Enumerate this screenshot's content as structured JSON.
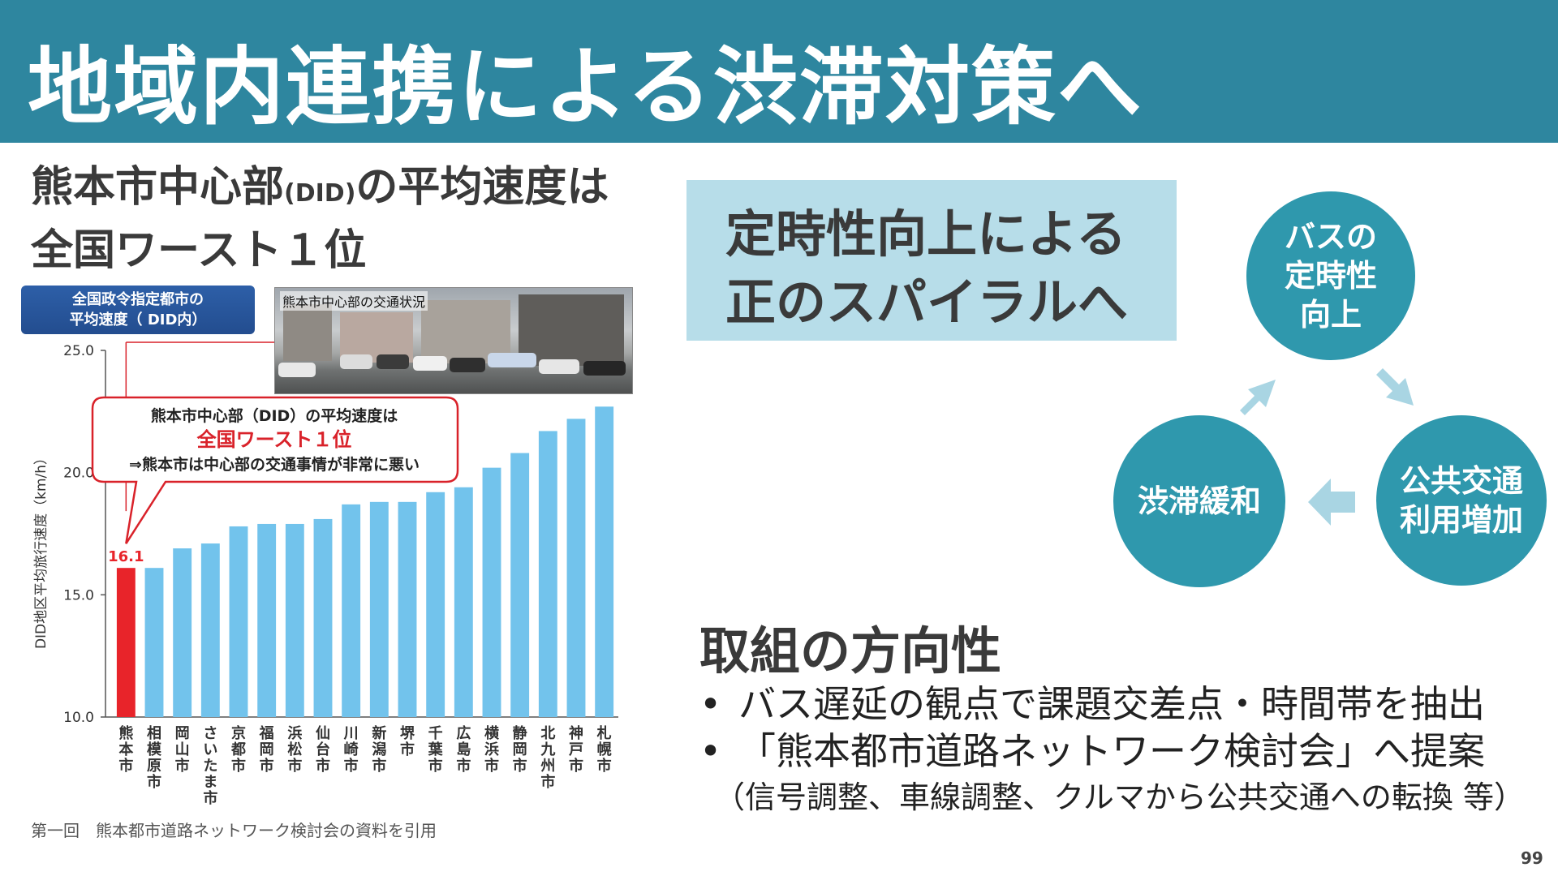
{
  "header": {
    "title": "地域内連携による渋滞対策へ"
  },
  "left": {
    "subtitle_line1_a": "熊本市中心部",
    "subtitle_line1_small": "(DID)",
    "subtitle_line1_b": "の平均速度は",
    "subtitle_line2": "全国ワースト１位",
    "photo_label": "熊本市中心部の交通状況",
    "source_note": "第一回　熊本都市道路ネットワーク検討会の資料を引用"
  },
  "chart_data": {
    "type": "bar",
    "legend_tag_line1": "全国政令指定都市の",
    "legend_tag_line2": "平均速度（ DID内）",
    "ylabel": "DID地区平均旅行速度（km/h）",
    "ylim": [
      10.0,
      25.0
    ],
    "yticks": [
      "25.0",
      "20.0",
      "15.0",
      "10.0"
    ],
    "ytick_values": [
      25.0,
      20.0,
      15.0,
      10.0
    ],
    "categories": [
      "熊本市",
      "相模原市",
      "岡山市",
      "さいたま市",
      "京都市",
      "福岡市",
      "浜松市",
      "仙台市",
      "川崎市",
      "新潟市",
      "堺市",
      "千葉市",
      "広島市",
      "横浜市",
      "静岡市",
      "北九州市",
      "神戸市",
      "札幌市"
    ],
    "values": [
      16.1,
      16.1,
      16.9,
      17.1,
      17.8,
      17.9,
      17.9,
      18.1,
      18.7,
      18.8,
      18.8,
      19.2,
      19.4,
      20.2,
      20.8,
      21.7,
      22.2,
      22.7
    ],
    "highlight_index": 0,
    "highlight_label": "16.1",
    "colors": {
      "bar": "#72c3ec",
      "highlight": "#e8242a",
      "axis": "#555555"
    },
    "callout": {
      "line1": "熊本市中心部（DID）の平均速度は",
      "line2": "全国ワースト１位",
      "line3": "⇒熊本市は中心部の交通事情が非常に悪い",
      "color": "#d9222a"
    }
  },
  "right": {
    "catch_line1": "定時性向上による",
    "catch_line2": "正のスパイラルへ",
    "cycle": {
      "top": [
        "バスの",
        "定時性",
        "向上"
      ],
      "right": [
        "公共交通",
        "利用増加"
      ],
      "left": [
        "渋滞緩和"
      ],
      "circle_color": "#2f98ad",
      "arrow_color": "#a9d5e3"
    },
    "direction_title": "取組の方向性",
    "bullets": [
      "バス遅延の観点で課題交差点・時間帯を抽出",
      "「熊本都市道路ネットワーク検討会」へ提案"
    ],
    "bullet_mark": "•",
    "bullet_note": "（信号調整、車線調整、クルマから公共交通への転換 等）"
  },
  "footer": {
    "page_number": "99"
  }
}
